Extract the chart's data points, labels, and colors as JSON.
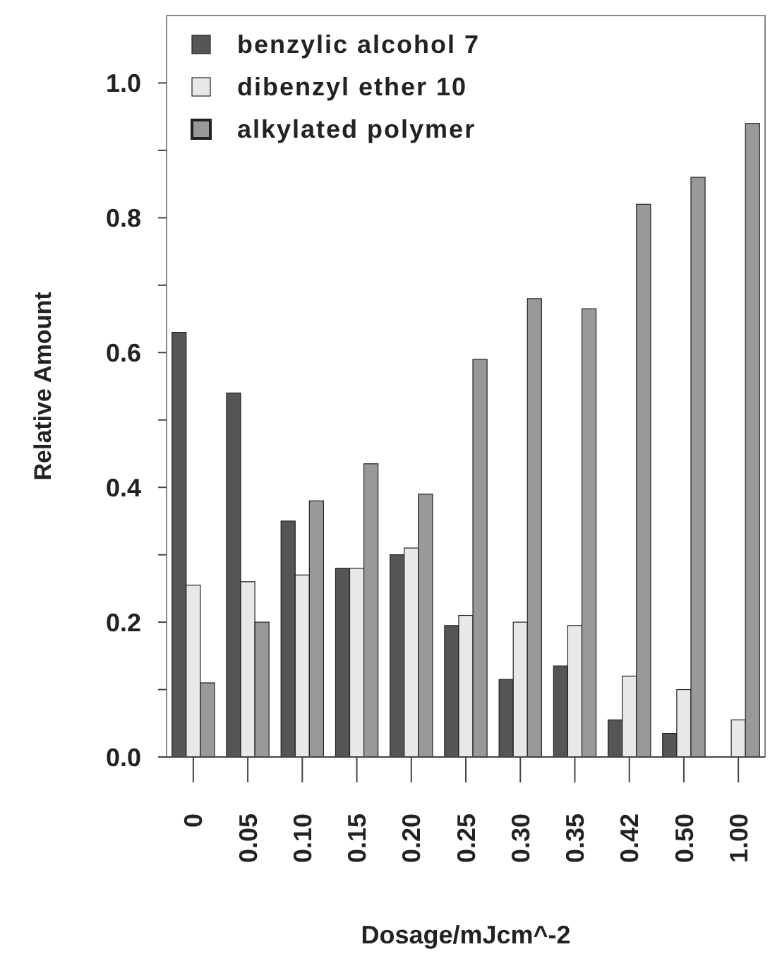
{
  "chart_data": {
    "type": "bar",
    "xlabel": "Dosage/mJcm^-2",
    "ylabel": "Relative Amount",
    "categories": [
      "0",
      "0.05",
      "0.10",
      "0.15",
      "0.20",
      "0.25",
      "0.30",
      "0.35",
      "0.42",
      "0.50",
      "1.00"
    ],
    "series": [
      {
        "name": "benzylic alcohol 7",
        "color": "#555555",
        "values": [
          0.63,
          0.54,
          0.35,
          0.28,
          0.3,
          0.195,
          0.115,
          0.135,
          0.055,
          0.035,
          null
        ]
      },
      {
        "name": "dibenzyl ether 10",
        "color": "#e8e8e8",
        "values": [
          0.255,
          0.26,
          0.27,
          0.28,
          0.31,
          0.21,
          0.2,
          0.195,
          0.12,
          0.1,
          0.055
        ]
      },
      {
        "name": "alkylated polymer",
        "color": "#999999",
        "values": [
          0.11,
          0.2,
          0.38,
          0.435,
          0.39,
          0.59,
          0.68,
          0.665,
          0.82,
          0.86,
          0.94
        ]
      }
    ],
    "ylim": [
      0,
      1.1
    ],
    "yticks": [
      {
        "value": 0,
        "label": "0.0"
      },
      {
        "value": 0.1,
        "label": null
      },
      {
        "value": 0.2,
        "label": "0.2"
      },
      {
        "value": 0.3,
        "label": null
      },
      {
        "value": 0.4,
        "label": "0.4"
      },
      {
        "value": 0.5,
        "label": null
      },
      {
        "value": 0.6,
        "label": "0.6"
      },
      {
        "value": 0.7,
        "label": null
      },
      {
        "value": 0.8,
        "label": "0.8"
      },
      {
        "value": 0.9,
        "label": null
      },
      {
        "value": 1,
        "label": "1.0"
      }
    ],
    "legend": "top left",
    "grid": false
  }
}
